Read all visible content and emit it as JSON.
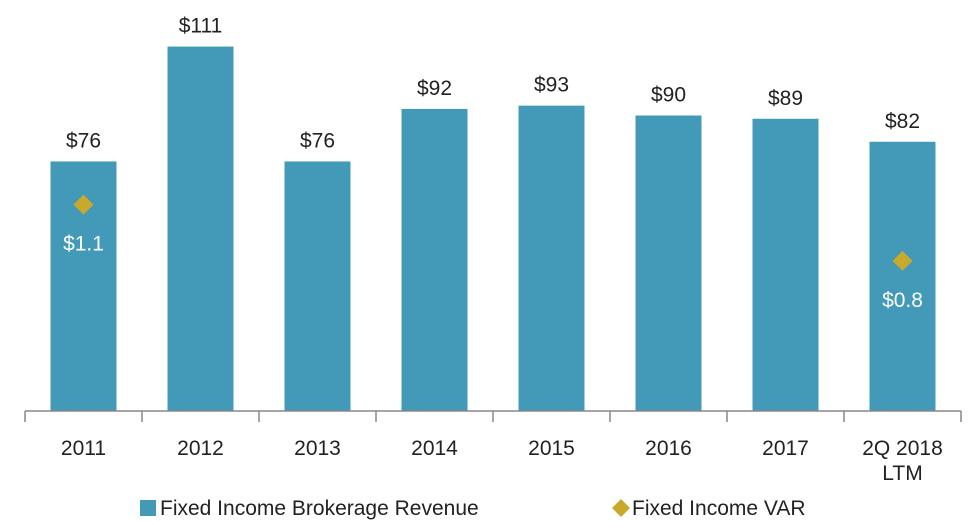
{
  "chart_data": {
    "type": "bar",
    "categories": [
      "2011",
      "2012",
      "2013",
      "2014",
      "2015",
      "2016",
      "2017",
      "2Q 2018 LTM"
    ],
    "series": [
      {
        "name": "Fixed Income Brokerage Revenue",
        "color": "#4299b8",
        "type": "bar",
        "values": [
          76,
          111,
          76,
          92,
          93,
          90,
          89,
          82
        ],
        "value_labels": [
          "$76",
          "$111",
          "$76",
          "$92",
          "$93",
          "$90",
          "$89",
          "$82"
        ]
      },
      {
        "name": "Fixed Income VAR",
        "color": "#c9a92c",
        "type": "scatter",
        "axis": "y2",
        "values": [
          1.1,
          null,
          null,
          null,
          null,
          null,
          null,
          0.8
        ],
        "value_labels": [
          "$1.1",
          null,
          null,
          null,
          null,
          null,
          null,
          "$0.8"
        ]
      }
    ],
    "ylim": [
      0,
      120
    ],
    "y2lim": [
      0,
      2.1
    ],
    "legend": "bottom"
  }
}
